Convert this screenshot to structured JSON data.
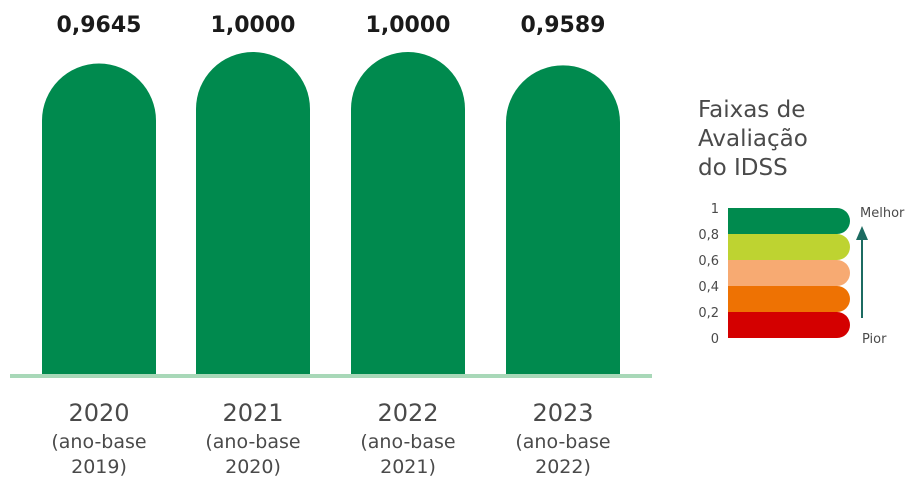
{
  "chart_data": {
    "type": "bar",
    "categories": [
      "2020",
      "2021",
      "2022",
      "2023"
    ],
    "category_sublabels": [
      [
        "(ano-base",
        "2019)"
      ],
      [
        "(ano-base",
        "2020)"
      ],
      [
        "(ano-base",
        "2021)"
      ],
      [
        "(ano-base",
        "2022)"
      ]
    ],
    "values": [
      0.9645,
      1.0,
      1.0,
      0.9589
    ],
    "value_labels": [
      "0,9645",
      "1,0000",
      "1,0000",
      "0,9589"
    ],
    "ylim": [
      0,
      1
    ],
    "bar_color": "#008A4E",
    "baseline_color": "#A8D8B8",
    "title": "",
    "xlabel": "",
    "ylabel": ""
  },
  "legend": {
    "title_lines": [
      "Faixas de",
      "Avaliação",
      "do IDSS"
    ],
    "ticks": [
      "0",
      "0,2",
      "0,4",
      "0,6",
      "0,8",
      "1"
    ],
    "bands": [
      {
        "from": 0.0,
        "to": 0.2,
        "color": "#D40000"
      },
      {
        "from": 0.2,
        "to": 0.4,
        "color": "#EE7203"
      },
      {
        "from": 0.4,
        "to": 0.6,
        "color": "#F7AA72"
      },
      {
        "from": 0.6,
        "to": 0.8,
        "color": "#BED331"
      },
      {
        "from": 0.8,
        "to": 1.0,
        "color": "#008A4E"
      }
    ],
    "top_label": "Melhor",
    "bottom_label": "Pior",
    "arrow_color": "#1C6B61"
  }
}
